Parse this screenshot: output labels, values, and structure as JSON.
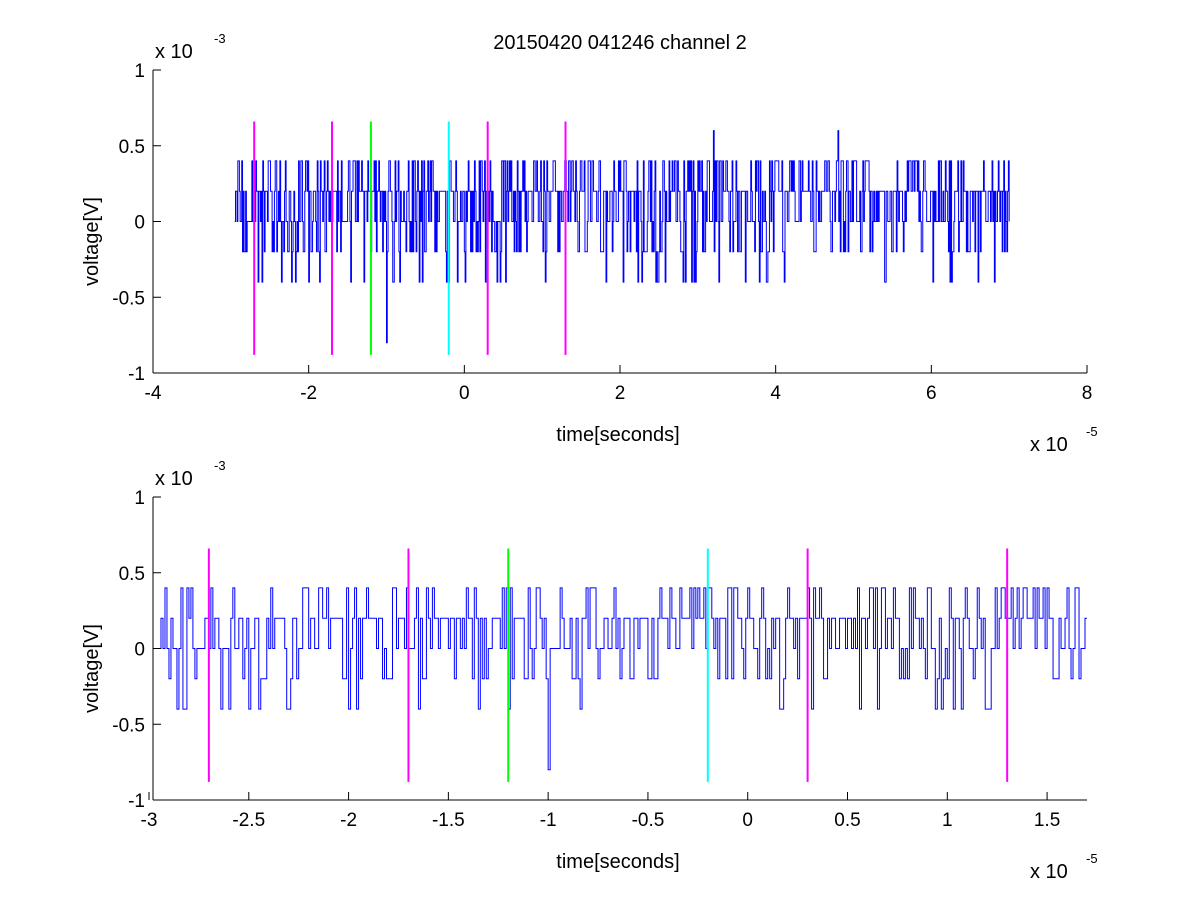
{
  "figure": {
    "title": "20150420 041246 channel 2",
    "colors": {
      "signal": "#0000ff",
      "magenta": "#ff00ff",
      "green": "#00ff00",
      "cyan": "#00ffff",
      "axes": "#000000"
    }
  },
  "chart_data": [
    {
      "type": "line",
      "title": "20150420 041246 channel 2",
      "xlabel": "time[seconds]",
      "ylabel": "voltage[V]",
      "xlim": [
        -4e-05,
        8e-05
      ],
      "ylim": [
        -0.001,
        0.001
      ],
      "x_ticks": [
        -4e-05,
        -2e-05,
        0,
        2e-05,
        4e-05,
        6e-05,
        8e-05
      ],
      "x_tick_labels": [
        "-4",
        "-2",
        "0",
        "2",
        "4",
        "6",
        "8"
      ],
      "y_ticks": [
        -0.001,
        -0.0005,
        0,
        0.0005,
        0.001
      ],
      "y_tick_labels": [
        "-1",
        "-0.5",
        "0",
        "0.5",
        "1"
      ],
      "x_exponent": {
        "base": "x 10",
        "power": "-5"
      },
      "y_exponent": {
        "base": "x 10",
        "power": "-3"
      },
      "grid": false,
      "signal": {
        "color": "#0000ff",
        "x_start": -2.95e-05,
        "x_end": 7e-05,
        "step": 1e-07,
        "quantum": 0.0002,
        "range_note": "quantized noise between -0.0004 and 0.0004 V with isolated dips",
        "dips": [
          {
            "x": -2.8e-05,
            "y": -0.0002
          },
          {
            "x": -2.6e-05,
            "y": -0.0004
          },
          {
            "x": -2e-05,
            "y": -0.0004
          },
          {
            "x": -1e-05,
            "y": -0.0008
          },
          {
            "x": 3.2e-05,
            "y": 0.0006
          },
          {
            "x": 4.8e-05,
            "y": 0.0006
          }
        ]
      },
      "markers": [
        {
          "x": -2.7e-05,
          "color": "#ff00ff"
        },
        {
          "x": -1.7e-05,
          "color": "#ff00ff"
        },
        {
          "x": -1.2e-05,
          "color": "#00ff00"
        },
        {
          "x": -2e-06,
          "color": "#00ffff"
        },
        {
          "x": 3e-06,
          "color": "#ff00ff"
        },
        {
          "x": 1.3e-05,
          "color": "#ff00ff"
        }
      ],
      "marker_ylim": [
        -0.00088,
        0.00066
      ]
    },
    {
      "type": "line",
      "title": "",
      "xlabel": "time[seconds]",
      "ylabel": "voltage[V]",
      "xlim": [
        -2.98e-05,
        1.7e-05
      ],
      "ylim": [
        -0.001,
        0.001
      ],
      "x_ticks": [
        -3e-05,
        -2.5e-05,
        -2e-05,
        -1.5e-05,
        -1e-05,
        -5e-06,
        0,
        5e-06,
        1e-05,
        1.5e-05
      ],
      "x_tick_labels": [
        "-3",
        "-2.5",
        "-2",
        "-1.5",
        "-1",
        "-0.5",
        "0",
        "0.5",
        "1",
        "1.5"
      ],
      "y_ticks": [
        -0.001,
        -0.0005,
        0,
        0.0005,
        0.001
      ],
      "y_tick_labels": [
        "-1",
        "-0.5",
        "0",
        "0.5",
        "1"
      ],
      "x_exponent": {
        "base": "x 10",
        "power": "-5"
      },
      "y_exponent": {
        "base": "x 10",
        "power": "-3"
      },
      "grid": false,
      "signal": {
        "color": "#0000ff",
        "x_start": -2.95e-05,
        "x_end": 1.7e-05,
        "step": 1e-07,
        "quantum": 0.0002,
        "range_note": "zoomed view of the same trace",
        "dips": [
          {
            "x": -2.6e-05,
            "y": -0.0004
          },
          {
            "x": -2e-05,
            "y": -0.0004
          },
          {
            "x": -1e-05,
            "y": -0.0008
          },
          {
            "x": 1.35e-05,
            "y": 0.0004
          }
        ]
      },
      "markers": [
        {
          "x": -2.7e-05,
          "color": "#ff00ff"
        },
        {
          "x": -1.7e-05,
          "color": "#ff00ff"
        },
        {
          "x": -1.2e-05,
          "color": "#00ff00"
        },
        {
          "x": -2e-06,
          "color": "#00ffff"
        },
        {
          "x": 3e-06,
          "color": "#ff00ff"
        },
        {
          "x": 1.3e-05,
          "color": "#ff00ff"
        }
      ],
      "marker_ylim": [
        -0.00088,
        0.00066
      ]
    }
  ]
}
